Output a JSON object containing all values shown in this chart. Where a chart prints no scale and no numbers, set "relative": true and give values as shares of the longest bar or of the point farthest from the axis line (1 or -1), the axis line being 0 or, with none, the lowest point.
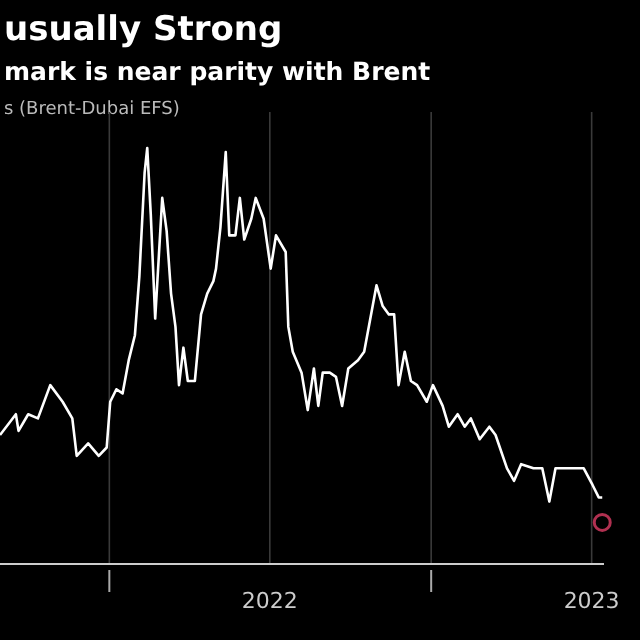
{
  "chart_data": {
    "type": "line",
    "title": "usually Strong",
    "subtitle": "mark is near parity with Brent",
    "ylabel": "s (Brent-Dubai EFS)",
    "relative": true,
    "grid": "x",
    "line_style": "solid",
    "xlim": [
      "2021-08-30",
      "2023-07-16"
    ],
    "xticks": [
      {
        "value": "2022-01-01",
        "label": null
      },
      {
        "value": "2022-07-02",
        "label": "2022"
      },
      {
        "value": "2023-01-01",
        "label": null
      },
      {
        "value": "2023-07-02",
        "label": "2023"
      }
    ],
    "series": [
      {
        "color": "#ffffff",
        "x": [
          "2021-08-30",
          "2021-09-17",
          "2021-09-20",
          "2021-10-01",
          "2021-10-12",
          "2021-10-26",
          "2021-11-09",
          "2021-11-20",
          "2021-11-25",
          "2021-12-08",
          "2021-12-20",
          "2021-12-29",
          "2022-01-02",
          "2022-01-09",
          "2022-01-16",
          "2022-01-23",
          "2022-01-30",
          "2022-02-04",
          "2022-02-10",
          "2022-02-13",
          "2022-02-17",
          "2022-02-22",
          "2022-03-02",
          "2022-03-07",
          "2022-03-12",
          "2022-03-17",
          "2022-03-21",
          "2022-03-26",
          "2022-03-31",
          "2022-04-08",
          "2022-04-15",
          "2022-04-22",
          "2022-04-29",
          "2022-05-02",
          "2022-05-07",
          "2022-05-13",
          "2022-05-17",
          "2022-05-24",
          "2022-05-29",
          "2022-06-03",
          "2022-06-11",
          "2022-06-16",
          "2022-06-25",
          "2022-07-03",
          "2022-07-09",
          "2022-07-20",
          "2022-07-23",
          "2022-07-28",
          "2022-08-07",
          "2022-08-14",
          "2022-08-21",
          "2022-08-26",
          "2022-08-31",
          "2022-09-08",
          "2022-09-15",
          "2022-09-22",
          "2022-09-29",
          "2022-10-10",
          "2022-10-17",
          "2022-10-24",
          "2022-10-31",
          "2022-11-07",
          "2022-11-14",
          "2022-11-20",
          "2022-11-25",
          "2022-12-02",
          "2022-12-09",
          "2022-12-16",
          "2022-12-27",
          "2023-01-03",
          "2023-01-14",
          "2023-01-21",
          "2023-01-31",
          "2023-02-08",
          "2023-02-15",
          "2023-02-25",
          "2023-03-08",
          "2023-03-15",
          "2023-03-28",
          "2023-04-05",
          "2023-04-13",
          "2023-04-27",
          "2023-05-07",
          "2023-05-15",
          "2023-05-22",
          "2023-06-01",
          "2023-06-12",
          "2023-06-23",
          "2023-07-03",
          "2023-07-10",
          "2023-07-14"
        ],
        "values": [
          0.31,
          0.36,
          0.32,
          0.36,
          0.35,
          0.43,
          0.39,
          0.35,
          0.26,
          0.29,
          0.26,
          0.28,
          0.39,
          0.42,
          0.41,
          0.49,
          0.55,
          0.69,
          0.94,
          1,
          0.84,
          0.59,
          0.88,
          0.8,
          0.65,
          0.57,
          0.43,
          0.52,
          0.44,
          0.44,
          0.6,
          0.65,
          0.68,
          0.71,
          0.81,
          0.99,
          0.79,
          0.79,
          0.88,
          0.78,
          0.83,
          0.88,
          0.83,
          0.71,
          0.79,
          0.75,
          0.57,
          0.51,
          0.46,
          0.37,
          0.47,
          0.38,
          0.46,
          0.46,
          0.45,
          0.38,
          0.47,
          0.49,
          0.51,
          0.59,
          0.67,
          0.62,
          0.6,
          0.6,
          0.43,
          0.51,
          0.44,
          0.43,
          0.39,
          0.43,
          0.38,
          0.33,
          0.36,
          0.33,
          0.35,
          0.3,
          0.33,
          0.31,
          0.23,
          0.2,
          0.24,
          0.23,
          0.23,
          0.15,
          0.23,
          0.23,
          0.23,
          0.23,
          0.19,
          0.16,
          0.16
        ]
      },
      {
        "type": "scatter",
        "marker": "circle",
        "color": "#b03050",
        "x": [
          "2023-07-14"
        ],
        "values": [
          0.1
        ]
      }
    ]
  }
}
